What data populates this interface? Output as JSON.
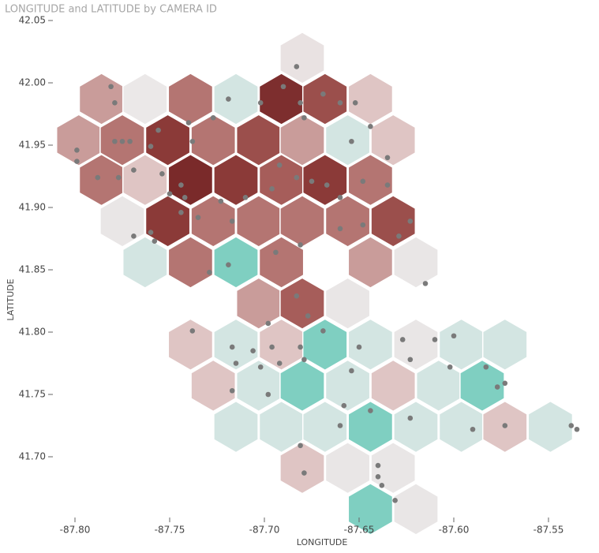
{
  "chart_data": {
    "type": "scatter",
    "title": "LONGITUDE and LATITUDE by CAMERA ID",
    "x_label": "LONGITUDE",
    "y_label": "LATITUDE",
    "xlim": [
      -87.815,
      -87.525
    ],
    "ylim": [
      41.65,
      42.05
    ],
    "xticks": [
      {
        "value": -87.8,
        "label": "-87.80"
      },
      -87.75,
      {
        "value": -87.7,
        "label": "-87.70"
      },
      -87.65,
      {
        "value": -87.6,
        "label": "-87.60"
      },
      -87.55
    ],
    "yticks": [
      {
        "value": 41.7,
        "label": "41.70"
      },
      41.75,
      {
        "value": 41.8,
        "label": "41.80"
      },
      41.85,
      {
        "value": 41.9,
        "label": "41.90"
      },
      41.95,
      {
        "value": 42,
        "label": "42.00"
      },
      42.05
    ],
    "point_color": "#7a7a7a",
    "hexbins": {
      "x": [
        -87.68,
        -87.786,
        -87.763,
        -87.739,
        -87.715,
        -87.691,
        -87.668,
        -87.644,
        -87.798,
        -87.775,
        -87.751,
        -87.727,
        -87.703,
        -87.68,
        -87.656,
        -87.632,
        -87.786,
        -87.763,
        -87.739,
        -87.715,
        -87.691,
        -87.668,
        -87.644,
        -87.775,
        -87.751,
        -87.727,
        -87.703,
        -87.68,
        -87.656,
        -87.632,
        -87.763,
        -87.739,
        -87.715,
        -87.691,
        -87.644,
        -87.62,
        -87.703,
        -87.68,
        -87.656,
        -87.739,
        -87.715,
        -87.691,
        -87.668,
        -87.644,
        -87.62,
        -87.596,
        -87.573,
        -87.727,
        -87.703,
        -87.68,
        -87.656,
        -87.632,
        -87.608,
        -87.585,
        -87.715,
        -87.691,
        -87.668,
        -87.644,
        -87.62,
        -87.596,
        -87.573,
        -87.549,
        -87.68,
        -87.656,
        -87.632,
        -87.644,
        -87.62
      ],
      "y": [
        42.02,
        41.987,
        41.987,
        41.987,
        41.987,
        41.987,
        41.987,
        41.987,
        41.954,
        41.954,
        41.954,
        41.954,
        41.954,
        41.954,
        41.954,
        41.954,
        41.922,
        41.922,
        41.922,
        41.922,
        41.922,
        41.922,
        41.922,
        41.889,
        41.889,
        41.889,
        41.889,
        41.889,
        41.889,
        41.889,
        41.856,
        41.856,
        41.856,
        41.856,
        41.856,
        41.856,
        41.823,
        41.823,
        41.823,
        41.79,
        41.79,
        41.79,
        41.79,
        41.79,
        41.79,
        41.79,
        41.79,
        41.757,
        41.757,
        41.757,
        41.757,
        41.757,
        41.757,
        41.757,
        41.724,
        41.724,
        41.724,
        41.724,
        41.724,
        41.724,
        41.724,
        41.724,
        41.691,
        41.691,
        41.691,
        41.658,
        41.658
      ],
      "colors": [
        "#e9e2e2",
        "#c99c9a",
        "#ebe8e8",
        "#b47572",
        "#d3e5e2",
        "#7d2e2e",
        "#9b4f4c",
        "#dfc5c4",
        "#c99c9a",
        "#b47572",
        "#8b3a38",
        "#b47572",
        "#9b4f4c",
        "#c99c9a",
        "#d3e5e2",
        "#dfc5c4",
        "#b47572",
        "#dfc5c4",
        "#7a2a2a",
        "#8b3a38",
        "#a65d5a",
        "#8b3a38",
        "#b47572",
        "#e9e6e6",
        "#8b3a38",
        "#b47572",
        "#b47572",
        "#b47572",
        "#b47572",
        "#9b4f4c",
        "#d3e5e2",
        "#b47572",
        "#7fcfc1",
        "#b47572",
        "#c99c9a",
        "#e9e6e6",
        "#c99c9a",
        "#a65d5a",
        "#e9e6e6",
        "#dfc5c4",
        "#d3e5e2",
        "#dfc5c4",
        "#7fcfc1",
        "#d3e5e2",
        "#e9e6e6",
        "#d3e5e2",
        "#d3e5e2",
        "#dfc5c4",
        "#d3e5e2",
        "#7fcfc1",
        "#d3e5e2",
        "#dfc5c4",
        "#d3e5e2",
        "#7fcfc1",
        "#d3e5e2",
        "#d3e5e2",
        "#d3e5e2",
        "#7fcfc1",
        "#d3e5e2",
        "#d3e5e2",
        "#dfc5c4",
        "#d3e5e2",
        "#dfc5c4",
        "#e9e6e6",
        "#e9e6e6",
        "#7fcfc1",
        "#e9e6e6"
      ]
    },
    "x": [
      -87.781,
      -87.779,
      -87.799,
      -87.799,
      -87.779,
      -87.775,
      -87.771,
      -87.769,
      -87.788,
      -87.777,
      -87.76,
      -87.756,
      -87.754,
      -87.75,
      -87.744,
      -87.742,
      -87.738,
      -87.74,
      -87.727,
      -87.719,
      -87.702,
      -87.69,
      -87.683,
      -87.681,
      -87.679,
      -87.669,
      -87.66,
      -87.652,
      -87.654,
      -87.644,
      -87.635,
      -87.635,
      -87.648,
      -87.66,
      -87.667,
      -87.675,
      -87.683,
      -87.692,
      -87.696,
      -87.71,
      -87.717,
      -87.723,
      -87.735,
      -87.744,
      -87.76,
      -87.758,
      -87.769,
      -87.729,
      -87.719,
      -87.694,
      -87.681,
      -87.66,
      -87.648,
      -87.629,
      -87.623,
      -87.615,
      -87.683,
      -87.677,
      -87.698,
      -87.738,
      -87.717,
      -87.706,
      -87.696,
      -87.681,
      -87.669,
      -87.65,
      -87.627,
      -87.61,
      -87.6,
      -87.715,
      -87.702,
      -87.692,
      -87.679,
      -87.654,
      -87.623,
      -87.602,
      -87.583,
      -87.573,
      -87.717,
      -87.698,
      -87.658,
      -87.644,
      -87.623,
      -87.59,
      -87.573,
      -87.66,
      -87.681,
      -87.679,
      -87.64,
      -87.64,
      -87.638,
      -87.631,
      -87.535,
      -87.538,
      -87.577
    ],
    "y": [
      41.997,
      41.984,
      41.946,
      41.937,
      41.953,
      41.953,
      41.953,
      41.93,
      41.924,
      41.924,
      41.949,
      41.962,
      41.927,
      41.911,
      41.918,
      41.908,
      41.953,
      41.968,
      41.972,
      41.987,
      41.984,
      41.997,
      42.013,
      41.984,
      41.972,
      41.991,
      41.984,
      41.984,
      41.953,
      41.965,
      41.94,
      41.918,
      41.921,
      41.908,
      41.918,
      41.921,
      41.924,
      41.934,
      41.915,
      41.908,
      41.889,
      41.905,
      41.892,
      41.896,
      41.88,
      41.873,
      41.877,
      41.848,
      41.854,
      41.864,
      41.87,
      41.883,
      41.886,
      41.877,
      41.889,
      41.839,
      41.829,
      41.813,
      41.807,
      41.801,
      41.788,
      41.785,
      41.788,
      41.788,
      41.801,
      41.788,
      41.794,
      41.794,
      41.797,
      41.775,
      41.772,
      41.775,
      41.778,
      41.769,
      41.778,
      41.772,
      41.772,
      41.759,
      41.753,
      41.75,
      41.741,
      41.737,
      41.731,
      41.722,
      41.725,
      41.725,
      41.709,
      41.687,
      41.693,
      41.684,
      41.677,
      41.665,
      41.722,
      41.725,
      41.756
    ]
  }
}
